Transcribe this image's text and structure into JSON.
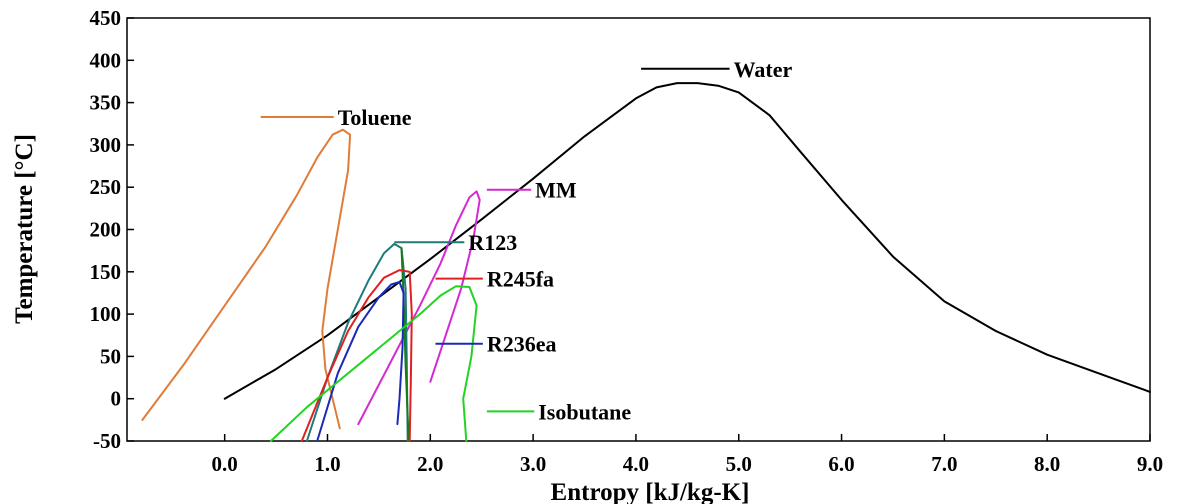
{
  "chart_data": {
    "type": "line",
    "title": "",
    "xlabel": "Entropy [kJ/kg-K]",
    "ylabel": "Temperature [°C]",
    "xlim": [
      -0.95,
      9.0
    ],
    "ylim": [
      -50,
      450
    ],
    "xticks": [
      0.0,
      1.0,
      2.0,
      3.0,
      4.0,
      5.0,
      6.0,
      7.0,
      8.0,
      9.0
    ],
    "xtick_labels": [
      "0.0",
      "1.0",
      "2.0",
      "3.0",
      "4.0",
      "5.0",
      "6.0",
      "7.0",
      "8.0",
      "9.0"
    ],
    "yticks": [
      -50,
      0,
      50,
      100,
      150,
      200,
      250,
      300,
      350,
      400,
      450
    ],
    "ytick_labels": [
      "-50",
      "0",
      "50",
      "100",
      "150",
      "200",
      "250",
      "300",
      "350",
      "400",
      "450"
    ],
    "grid": false,
    "legend": "inline labels with leader lines",
    "series": [
      {
        "name": "Water",
        "color": "#000000",
        "points": [
          [
            0.0,
            0
          ],
          [
            0.5,
            35
          ],
          [
            1.0,
            75
          ],
          [
            1.5,
            120
          ],
          [
            2.0,
            165
          ],
          [
            2.5,
            212
          ],
          [
            3.0,
            260
          ],
          [
            3.5,
            310
          ],
          [
            4.0,
            355
          ],
          [
            4.2,
            368
          ],
          [
            4.4,
            373
          ],
          [
            4.6,
            373
          ],
          [
            4.8,
            370
          ],
          [
            5.0,
            362
          ],
          [
            5.3,
            335
          ],
          [
            5.6,
            292
          ],
          [
            6.0,
            235
          ],
          [
            6.5,
            168
          ],
          [
            7.0,
            115
          ],
          [
            7.5,
            80
          ],
          [
            8.0,
            52
          ],
          [
            8.5,
            30
          ],
          [
            9.0,
            8
          ]
        ],
        "label_anchor": [
          4.05,
          390
        ],
        "label_at": [
          4.95,
          390
        ]
      },
      {
        "name": "Toluene",
        "color": "#e07b39",
        "points": [
          [
            -0.8,
            -25
          ],
          [
            -0.4,
            40
          ],
          [
            0.0,
            110
          ],
          [
            0.4,
            180
          ],
          [
            0.7,
            240
          ],
          [
            0.9,
            285
          ],
          [
            1.05,
            312
          ],
          [
            1.15,
            318
          ],
          [
            1.22,
            312
          ],
          [
            1.2,
            270
          ],
          [
            1.1,
            200
          ],
          [
            1.0,
            130
          ],
          [
            0.95,
            80
          ],
          [
            0.98,
            35
          ],
          [
            1.05,
            0
          ],
          [
            1.12,
            -35
          ]
        ],
        "label_anchor": [
          0.35,
          333
        ],
        "label_at": [
          1.1,
          333
        ]
      },
      {
        "name": "MM",
        "color": "#d42ad4",
        "points": [
          [
            1.3,
            -30
          ],
          [
            1.6,
            40
          ],
          [
            1.9,
            110
          ],
          [
            2.1,
            160
          ],
          [
            2.25,
            205
          ],
          [
            2.38,
            238
          ],
          [
            2.45,
            245
          ],
          [
            2.48,
            235
          ],
          [
            2.42,
            190
          ],
          [
            2.3,
            130
          ],
          [
            2.15,
            75
          ],
          [
            2.0,
            20
          ]
        ],
        "label_anchor": [
          2.55,
          247
        ],
        "label_at": [
          3.02,
          247
        ]
      },
      {
        "name": "R123",
        "color": "#1f7a7a",
        "points": [
          [
            0.8,
            -50
          ],
          [
            1.0,
            25
          ],
          [
            1.2,
            90
          ],
          [
            1.4,
            140
          ],
          [
            1.55,
            172
          ],
          [
            1.65,
            183
          ],
          [
            1.72,
            178
          ],
          [
            1.76,
            130
          ],
          [
            1.77,
            50
          ],
          [
            1.78,
            -50
          ]
        ],
        "label_anchor": [
          1.65,
          185
        ],
        "label_at": [
          2.37,
          185
        ]
      },
      {
        "name": "R123 (green)",
        "color": "#1a7a1a",
        "points": [
          [
            1.72,
            178
          ],
          [
            1.74,
            120
          ],
          [
            1.76,
            40
          ],
          [
            1.79,
            -50
          ]
        ],
        "hide_label": true
      },
      {
        "name": "R245fa",
        "color": "#e02020",
        "points": [
          [
            0.75,
            -50
          ],
          [
            1.0,
            25
          ],
          [
            1.2,
            80
          ],
          [
            1.4,
            120
          ],
          [
            1.55,
            143
          ],
          [
            1.7,
            152
          ],
          [
            1.8,
            150
          ],
          [
            1.82,
            100
          ],
          [
            1.81,
            20
          ],
          [
            1.8,
            -50
          ]
        ],
        "label_anchor": [
          2.05,
          142
        ],
        "label_at": [
          2.55,
          142
        ]
      },
      {
        "name": "R236ea",
        "color": "#1a2ab8",
        "points": [
          [
            0.9,
            -50
          ],
          [
            1.1,
            30
          ],
          [
            1.3,
            85
          ],
          [
            1.5,
            120
          ],
          [
            1.62,
            135
          ],
          [
            1.7,
            138
          ],
          [
            1.74,
            125
          ],
          [
            1.73,
            60
          ],
          [
            1.7,
            0
          ],
          [
            1.68,
            -30
          ]
        ],
        "label_anchor": [
          2.05,
          65
        ],
        "label_at": [
          2.55,
          65
        ]
      },
      {
        "name": "Isobutane",
        "color": "#22d422",
        "points": [
          [
            0.45,
            -50
          ],
          [
            0.8,
            -10
          ],
          [
            1.2,
            30
          ],
          [
            1.6,
            70
          ],
          [
            1.9,
            100
          ],
          [
            2.1,
            122
          ],
          [
            2.25,
            133
          ],
          [
            2.38,
            132
          ],
          [
            2.45,
            110
          ],
          [
            2.4,
            50
          ],
          [
            2.32,
            0
          ],
          [
            2.35,
            -50
          ]
        ],
        "label_anchor": [
          2.55,
          -15
        ],
        "label_at": [
          3.05,
          -15
        ]
      }
    ]
  }
}
